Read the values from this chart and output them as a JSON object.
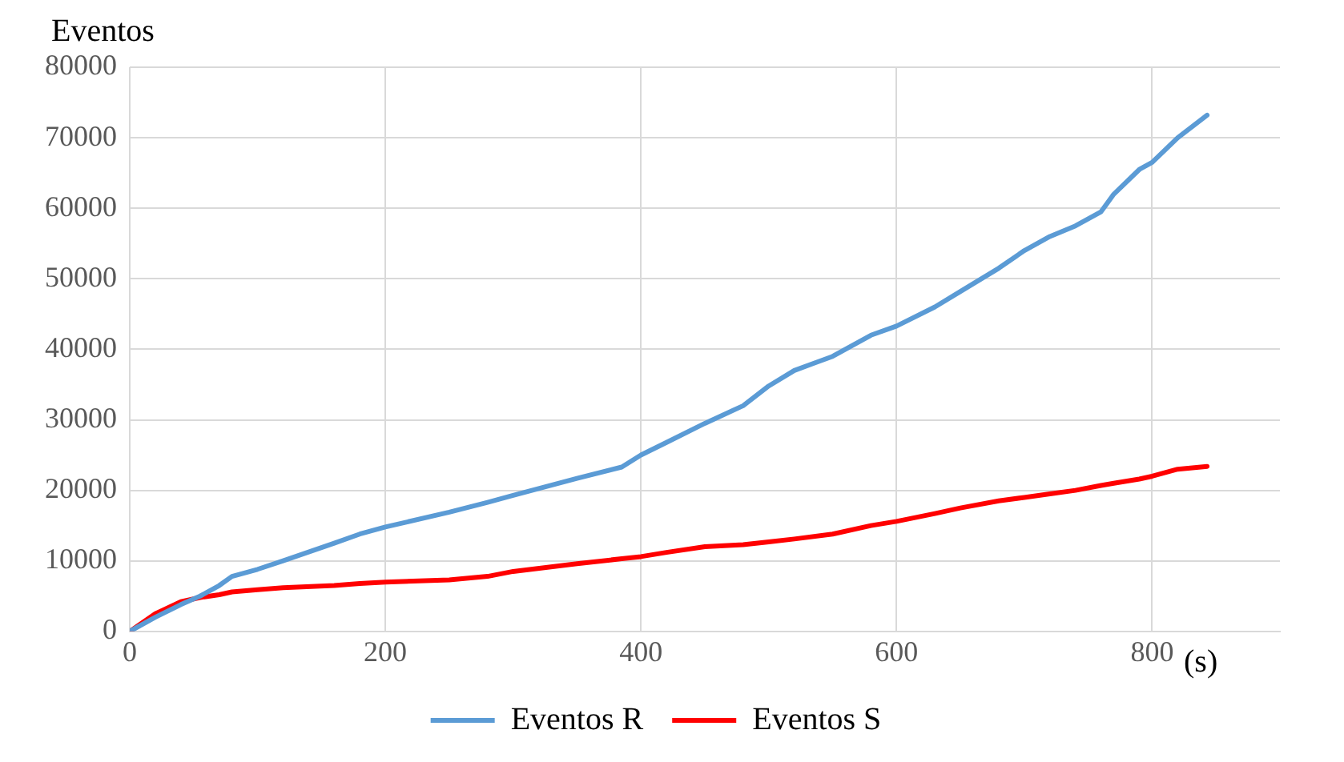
{
  "chart_data": {
    "type": "line",
    "ylabel": "Eventos",
    "xlabel": "(s)",
    "x": [
      0,
      20,
      40,
      55,
      70,
      80,
      100,
      120,
      160,
      180,
      200,
      250,
      280,
      300,
      350,
      385,
      400,
      420,
      450,
      480,
      500,
      520,
      550,
      580,
      600,
      630,
      650,
      680,
      700,
      720,
      740,
      760,
      770,
      790,
      800,
      820,
      843
    ],
    "series": [
      {
        "name": "Eventos R",
        "color": "#5b9bd5",
        "values": [
          0,
          2000,
          3800,
          5000,
          6500,
          7800,
          8800,
          10000,
          12500,
          13800,
          14800,
          16900,
          18300,
          19300,
          21700,
          23300,
          25000,
          26800,
          29500,
          32000,
          34800,
          37000,
          39000,
          42000,
          43300,
          46000,
          48200,
          51500,
          54000,
          56000,
          57500,
          59500,
          62000,
          65500,
          66500,
          70000,
          73200
        ]
      },
      {
        "name": "Eventos S",
        "color": "#ff0000",
        "values": [
          0,
          2500,
          4200,
          4800,
          5200,
          5600,
          5900,
          6200,
          6500,
          6800,
          7000,
          7300,
          7800,
          8500,
          9600,
          10300,
          10600,
          11200,
          12000,
          12300,
          12700,
          13100,
          13800,
          15000,
          15600,
          16700,
          17500,
          18500,
          19000,
          19500,
          20000,
          20700,
          21000,
          21600,
          22000,
          23000,
          23400
        ]
      }
    ],
    "xlim": [
      0,
      900
    ],
    "xticks": [
      0,
      200,
      400,
      600,
      800
    ],
    "ylim": [
      0,
      80000
    ],
    "yticks": [
      0,
      10000,
      20000,
      30000,
      40000,
      50000,
      60000,
      70000,
      80000
    ],
    "grid": true,
    "legend": "bottom",
    "marker": "none",
    "line_style": "solid"
  }
}
